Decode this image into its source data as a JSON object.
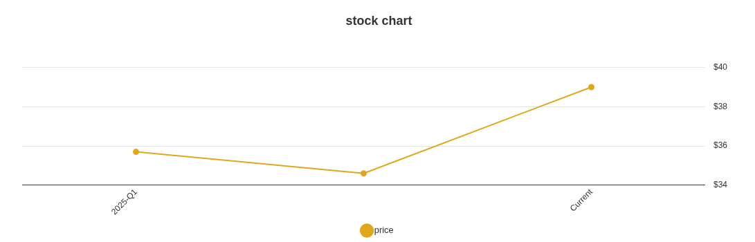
{
  "chart_data": {
    "type": "line",
    "title": "stock chart",
    "categories": [
      "2025-Q1",
      null,
      "Current"
    ],
    "series": [
      {
        "name": "price",
        "color": "#dfa81a",
        "values": [
          35.7,
          34.6,
          39.0
        ]
      }
    ],
    "ylim": [
      34,
      40
    ],
    "yticks": [
      {
        "value": 34,
        "label": "$34"
      },
      {
        "value": 36,
        "label": "$36"
      },
      {
        "value": 38,
        "label": "$38"
      },
      {
        "value": 40,
        "label": "$40"
      }
    ],
    "grid": "y",
    "legend": "bottom",
    "marker": "circle",
    "line_style": "solid"
  }
}
